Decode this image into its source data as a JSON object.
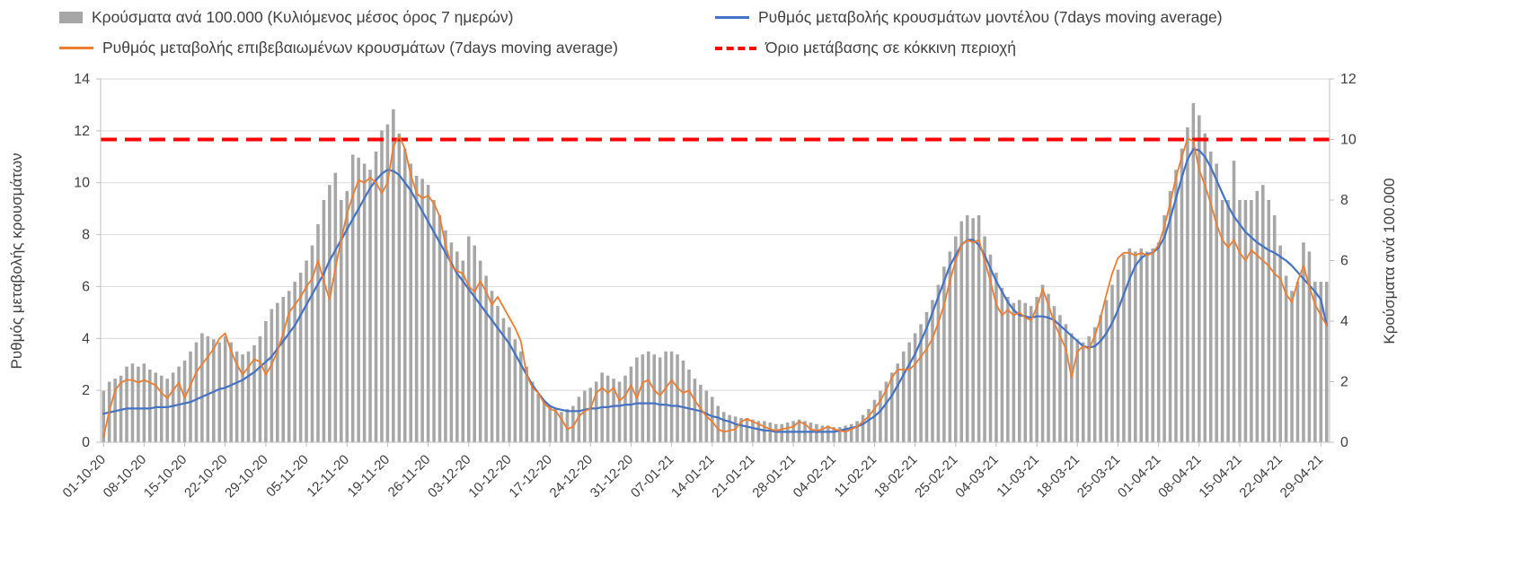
{
  "legend": {
    "bars": "Κρούσματα ανά 100.000 (Κυλιόμενος μέσος όρος 7 ημερών)",
    "model_line": "Ρυθμός μεταβολής κρουσμάτων μοντέλου (7days moving average)",
    "confirmed_line": "Ρυθμός μεταβολής επιβεβαιωμένων κρουσμάτων (7days moving average)",
    "threshold": "Όριο μετάβασης σε κόκκινη περιοχή"
  },
  "axes_info": {
    "left_label": "Ρυθμός μεταβολής κρουσμάτων",
    "right_label": "Κρούσματα ανά 100.000"
  },
  "colors": {
    "bars": "#a6a6a6",
    "model_line": "#4472c4",
    "confirmed_line": "#ed7d31",
    "threshold": "#ff0000",
    "grid": "#d9d9d9",
    "axis": "#bfbfbf",
    "text": "#404040"
  },
  "chart_data": {
    "type": "bar",
    "subtype": "bar+line combo, dual y-axis",
    "title": "",
    "xlabel": "",
    "left_ylabel": "Ρυθμός μεταβολής κρουσμάτων",
    "right_ylabel": "Κρούσματα ανά 100.000",
    "left_ylim": [
      0,
      14
    ],
    "right_ylim": [
      0,
      12
    ],
    "left_ticks": [
      0,
      2,
      4,
      6,
      8,
      10,
      12,
      14
    ],
    "right_ticks": [
      0,
      2,
      4,
      6,
      8,
      10,
      12
    ],
    "grid": true,
    "legend_position": "top",
    "tick_step": 7,
    "x_tick_labels": [
      "01-10-20",
      "08-10-20",
      "15-10-20",
      "22-10-20",
      "29-10-20",
      "05-11-20",
      "12-11-20",
      "19-11-20",
      "26-11-20",
      "03-12-20",
      "10-12-20",
      "17-12-20",
      "24-12-20",
      "31-12-20",
      "07-01-21",
      "14-01-21",
      "21-01-21",
      "28-01-21",
      "04-02-21",
      "11-02-21",
      "18-02-21",
      "25-02-21",
      "04-03-21",
      "11-03-21",
      "18-03-21",
      "25-03-21",
      "01-04-21",
      "08-04-21",
      "15-04-21",
      "22-04-21",
      "29-04-21"
    ],
    "series": [
      {
        "name": "Κρούσματα ανά 100.000 (Κυλιόμενος μέσος όρος 7 ημερών)",
        "type": "bar",
        "axis": "right",
        "color": "#a6a6a6",
        "values": [
          1.7,
          2.0,
          2.1,
          2.2,
          2.5,
          2.6,
          2.5,
          2.6,
          2.4,
          2.3,
          2.2,
          2.1,
          2.3,
          2.5,
          2.7,
          3.0,
          3.3,
          3.6,
          3.5,
          3.4,
          3.3,
          3.5,
          3.3,
          3.0,
          2.9,
          3.0,
          3.2,
          3.5,
          4.0,
          4.4,
          4.6,
          4.8,
          5.0,
          5.3,
          5.6,
          6.0,
          6.5,
          7.2,
          8.0,
          8.5,
          8.9,
          8.0,
          8.3,
          9.5,
          9.4,
          9.2,
          9.0,
          9.6,
          10.3,
          10.5,
          11.0,
          10.2,
          9.7,
          9.2,
          8.8,
          8.7,
          8.5,
          8.0,
          7.5,
          7.0,
          6.6,
          6.3,
          6.0,
          6.8,
          6.5,
          6.0,
          5.5,
          5.0,
          4.5,
          4.1,
          3.8,
          3.4,
          3.0,
          2.5,
          2.0,
          1.6,
          1.4,
          1.2,
          1.1,
          1.0,
          1.1,
          1.2,
          1.5,
          1.7,
          1.8,
          2.0,
          2.3,
          2.2,
          2.1,
          2.0,
          2.2,
          2.5,
          2.8,
          2.9,
          3.0,
          2.9,
          2.8,
          3.0,
          3.0,
          2.9,
          2.7,
          2.4,
          2.1,
          1.9,
          1.7,
          1.5,
          1.2,
          1.0,
          0.9,
          0.85,
          0.8,
          0.8,
          0.75,
          0.7,
          0.7,
          0.65,
          0.6,
          0.6,
          0.65,
          0.7,
          0.75,
          0.7,
          0.65,
          0.6,
          0.55,
          0.55,
          0.5,
          0.5,
          0.55,
          0.6,
          0.7,
          0.9,
          1.1,
          1.4,
          1.7,
          2.0,
          2.3,
          2.6,
          3.0,
          3.3,
          3.6,
          3.9,
          4.3,
          4.7,
          5.2,
          5.8,
          6.3,
          6.8,
          7.3,
          7.5,
          7.4,
          7.5,
          6.8,
          6.2,
          5.6,
          5.1,
          4.8,
          4.6,
          4.7,
          4.6,
          4.5,
          4.8,
          5.2,
          4.9,
          4.5,
          4.2,
          3.9,
          3.6,
          3.4,
          3.3,
          3.5,
          3.8,
          4.2,
          4.7,
          5.2,
          5.7,
          6.2,
          6.4,
          6.3,
          6.4,
          6.3,
          6.4,
          6.6,
          7.5,
          8.3,
          9.0,
          9.7,
          10.4,
          11.2,
          10.8,
          10.2,
          9.6,
          9.2,
          8.0,
          8.0,
          9.3,
          8.0,
          8.0,
          8.0,
          8.3,
          8.5,
          8.0,
          7.5,
          6.5,
          5.5,
          5.0,
          5.3,
          6.6,
          6.3,
          5.3,
          5.3,
          5.3
        ]
      },
      {
        "name": "Ρυθμός μεταβολής κρουσμάτων μοντέλου (7days moving average)",
        "type": "line",
        "axis": "left",
        "color": "#4472c4",
        "width": 2.2,
        "values": [
          1.1,
          1.15,
          1.2,
          1.25,
          1.3,
          1.3,
          1.3,
          1.3,
          1.3,
          1.35,
          1.35,
          1.35,
          1.4,
          1.45,
          1.5,
          1.55,
          1.65,
          1.75,
          1.85,
          1.95,
          2.05,
          2.1,
          2.2,
          2.3,
          2.4,
          2.55,
          2.7,
          2.9,
          3.1,
          3.3,
          3.6,
          3.9,
          4.2,
          4.5,
          4.9,
          5.3,
          5.7,
          6.1,
          6.5,
          7.0,
          7.4,
          7.8,
          8.2,
          8.6,
          9.0,
          9.4,
          9.8,
          10.1,
          10.35,
          10.5,
          10.45,
          10.3,
          10.0,
          9.7,
          9.3,
          8.9,
          8.5,
          8.1,
          7.7,
          7.3,
          6.9,
          6.5,
          6.2,
          5.9,
          5.6,
          5.3,
          5.0,
          4.7,
          4.4,
          4.1,
          3.8,
          3.4,
          3.0,
          2.6,
          2.2,
          1.9,
          1.6,
          1.4,
          1.3,
          1.25,
          1.2,
          1.2,
          1.2,
          1.25,
          1.3,
          1.3,
          1.35,
          1.35,
          1.4,
          1.4,
          1.45,
          1.45,
          1.5,
          1.5,
          1.5,
          1.5,
          1.45,
          1.45,
          1.4,
          1.4,
          1.35,
          1.3,
          1.25,
          1.2,
          1.1,
          1.0,
          0.95,
          0.85,
          0.8,
          0.7,
          0.65,
          0.6,
          0.55,
          0.5,
          0.45,
          0.45,
          0.4,
          0.4,
          0.4,
          0.4,
          0.4,
          0.4,
          0.4,
          0.4,
          0.4,
          0.4,
          0.4,
          0.45,
          0.5,
          0.55,
          0.6,
          0.7,
          0.85,
          1.0,
          1.2,
          1.5,
          1.8,
          2.2,
          2.6,
          3.0,
          3.4,
          3.9,
          4.4,
          5.0,
          5.6,
          6.2,
          6.8,
          7.2,
          7.6,
          7.8,
          7.8,
          7.6,
          7.2,
          6.7,
          6.2,
          5.8,
          5.4,
          5.1,
          4.9,
          4.85,
          4.8,
          4.85,
          4.85,
          4.8,
          4.7,
          4.5,
          4.3,
          4.1,
          3.9,
          3.7,
          3.65,
          3.7,
          3.9,
          4.2,
          4.6,
          5.1,
          5.7,
          6.3,
          6.8,
          7.1,
          7.25,
          7.3,
          7.5,
          7.9,
          8.6,
          9.4,
          10.2,
          10.9,
          11.3,
          11.25,
          11.0,
          10.6,
          10.1,
          9.6,
          9.1,
          8.7,
          8.4,
          8.1,
          7.9,
          7.7,
          7.55,
          7.4,
          7.3,
          7.15,
          7.0,
          6.8,
          6.55,
          6.3,
          6.05,
          5.8,
          5.5,
          4.5
        ]
      },
      {
        "name": "Ρυθμός μεταβολής επιβεβαιωμένων κρουσμάτων (7days moving average)",
        "type": "line",
        "axis": "left",
        "color": "#ed7d31",
        "width": 1.8,
        "values": [
          0.2,
          1.2,
          2.0,
          2.3,
          2.4,
          2.4,
          2.3,
          2.4,
          2.3,
          2.2,
          1.9,
          1.7,
          2.0,
          2.3,
          1.7,
          2.2,
          2.7,
          3.0,
          3.3,
          3.6,
          4.0,
          4.2,
          3.5,
          3.0,
          2.6,
          2.9,
          3.2,
          3.1,
          2.6,
          3.0,
          3.5,
          4.2,
          5.0,
          5.3,
          5.6,
          6.0,
          6.3,
          7.0,
          6.2,
          5.5,
          6.7,
          7.8,
          8.8,
          9.5,
          10.1,
          10.0,
          10.2,
          10.0,
          9.6,
          10.0,
          11.4,
          11.8,
          11.3,
          10.3,
          9.6,
          9.4,
          9.5,
          9.2,
          8.7,
          7.6,
          6.8,
          6.6,
          6.5,
          6.0,
          5.8,
          6.2,
          5.8,
          5.3,
          5.6,
          5.2,
          4.8,
          4.4,
          3.9,
          2.6,
          2.1,
          1.9,
          1.5,
          1.3,
          1.2,
          0.9,
          0.5,
          0.6,
          1.0,
          1.2,
          1.3,
          1.9,
          2.1,
          1.9,
          2.1,
          1.6,
          1.8,
          2.2,
          1.7,
          2.3,
          2.4,
          2.0,
          1.8,
          2.1,
          2.4,
          2.1,
          1.9,
          2.0,
          1.6,
          1.3,
          1.0,
          0.8,
          0.5,
          0.4,
          0.45,
          0.5,
          0.8,
          0.9,
          0.8,
          0.7,
          0.6,
          0.5,
          0.45,
          0.5,
          0.55,
          0.6,
          0.8,
          0.7,
          0.5,
          0.45,
          0.5,
          0.6,
          0.5,
          0.45,
          0.4,
          0.5,
          0.6,
          0.8,
          1.0,
          1.3,
          1.6,
          2.0,
          2.5,
          2.8,
          2.8,
          2.8,
          3.0,
          3.3,
          3.6,
          4.0,
          4.6,
          5.3,
          6.2,
          7.0,
          7.6,
          7.8,
          7.7,
          7.8,
          7.0,
          6.2,
          5.3,
          4.9,
          5.1,
          4.9,
          5.0,
          4.8,
          4.7,
          5.2,
          5.9,
          5.3,
          4.6,
          4.1,
          3.6,
          2.5,
          3.5,
          3.7,
          3.6,
          4.1,
          4.8,
          5.7,
          6.5,
          7.1,
          7.3,
          7.3,
          7.2,
          7.3,
          7.2,
          7.3,
          7.6,
          8.3,
          9.2,
          10.2,
          11.0,
          11.7,
          11.6,
          10.5,
          9.9,
          9.2,
          8.4,
          7.8,
          7.5,
          7.8,
          7.3,
          7.0,
          7.4,
          7.2,
          7.0,
          6.8,
          6.5,
          6.3,
          5.7,
          5.4,
          6.2,
          6.8,
          6.0,
          5.3,
          4.9,
          4.5
        ]
      },
      {
        "name": "Όριο μετάβασης σε κόκκινη περιοχή",
        "type": "threshold",
        "axis": "right",
        "color": "#ff0000",
        "value": 10
      }
    ]
  }
}
